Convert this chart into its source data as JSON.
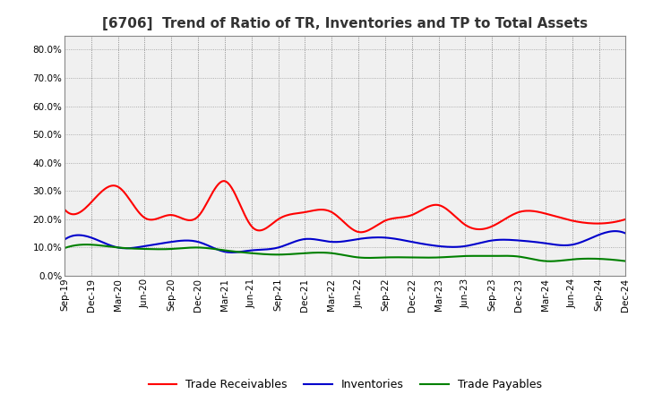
{
  "title": "[6706]  Trend of Ratio of TR, Inventories and TP to Total Assets",
  "x_labels": [
    "Sep-19",
    "Dec-19",
    "Mar-20",
    "Jun-20",
    "Sep-20",
    "Dec-20",
    "Mar-21",
    "Jun-21",
    "Sep-21",
    "Dec-21",
    "Mar-22",
    "Jun-22",
    "Sep-22",
    "Dec-22",
    "Mar-23",
    "Jun-23",
    "Sep-23",
    "Dec-23",
    "Mar-24",
    "Jun-24",
    "Sep-24",
    "Dec-24"
  ],
  "trade_receivables": [
    0.235,
    0.26,
    0.315,
    0.205,
    0.215,
    0.21,
    0.335,
    0.175,
    0.2,
    0.225,
    0.225,
    0.155,
    0.195,
    0.215,
    0.25,
    0.18,
    0.175,
    0.225,
    0.22,
    0.195,
    0.185,
    0.2
  ],
  "inventories": [
    0.128,
    0.135,
    0.1,
    0.105,
    0.12,
    0.12,
    0.085,
    0.09,
    0.1,
    0.13,
    0.12,
    0.13,
    0.135,
    0.12,
    0.105,
    0.105,
    0.125,
    0.125,
    0.115,
    0.11,
    0.145,
    0.15
  ],
  "trade_payables": [
    0.098,
    0.11,
    0.1,
    0.095,
    0.095,
    0.1,
    0.09,
    0.08,
    0.075,
    0.08,
    0.08,
    0.065,
    0.065,
    0.065,
    0.065,
    0.07,
    0.07,
    0.068,
    0.052,
    0.058,
    0.06,
    0.052
  ],
  "tr_color": "#ff0000",
  "inv_color": "#0000cc",
  "tp_color": "#008000",
  "ylim": [
    0.0,
    0.85
  ],
  "yticks": [
    0.0,
    0.1,
    0.2,
    0.3,
    0.4,
    0.5,
    0.6,
    0.7,
    0.8
  ],
  "plot_bg_color": "#f0f0f0",
  "fig_bg_color": "#ffffff",
  "grid_color": "#999999",
  "title_fontsize": 11,
  "title_color": "#333333",
  "legend_labels": [
    "Trade Receivables",
    "Inventories",
    "Trade Payables"
  ],
  "tick_labelsize": 7.5,
  "linewidth": 1.5
}
